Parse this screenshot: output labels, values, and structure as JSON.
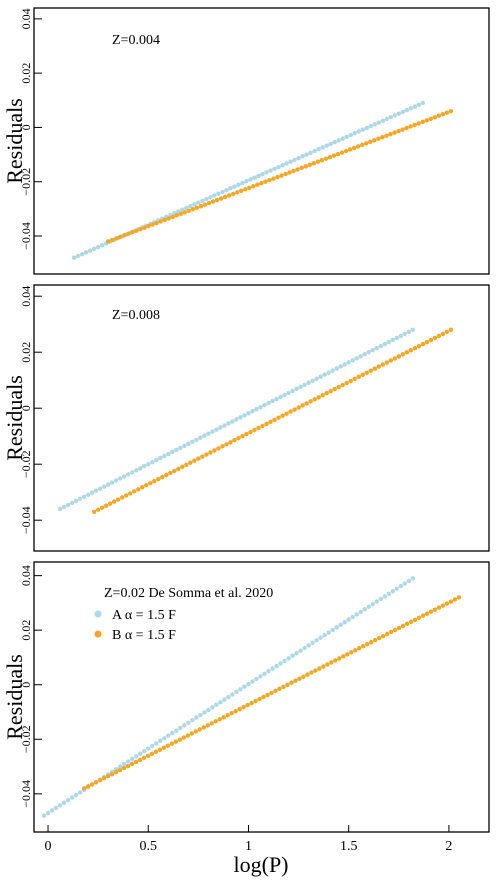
{
  "figure": {
    "xlabel": "log(P)",
    "ylabel": "Residuals"
  },
  "colors": {
    "A": "#add8e6",
    "B": "#f5a623"
  },
  "chart_data": [
    {
      "type": "scatter",
      "annotation": "Z=0.004",
      "xlim": [
        -0.07,
        2.2
      ],
      "ylim": [
        -0.054,
        0.044
      ],
      "yticks": [
        -0.04,
        -0.02,
        0,
        0.02,
        0.04
      ],
      "ytick_labels": [
        "−0.04",
        "−0.02",
        "0",
        "0.02",
        "0.04"
      ],
      "grid": false,
      "legend": [],
      "series": [
        {
          "key": "A",
          "x_range": [
            0.13,
            1.87
          ],
          "y_range": [
            -0.048,
            0.009
          ],
          "n_points": 88
        },
        {
          "key": "B",
          "x_range": [
            0.3,
            2.01
          ],
          "y_range": [
            -0.042,
            0.006
          ],
          "n_points": 86
        }
      ]
    },
    {
      "type": "scatter",
      "annotation": "Z=0.008",
      "xlim": [
        -0.07,
        2.2
      ],
      "ylim": [
        -0.051,
        0.044
      ],
      "yticks": [
        -0.04,
        -0.02,
        0,
        0.02,
        0.04
      ],
      "ytick_labels": [
        "−0.04",
        "−0.02",
        "0",
        "0.02",
        "0.04"
      ],
      "grid": false,
      "legend": [],
      "series": [
        {
          "key": "A",
          "x_range": [
            0.06,
            1.82
          ],
          "y_range": [
            -0.036,
            0.028
          ],
          "n_points": 89
        },
        {
          "key": "B",
          "x_range": [
            0.23,
            2.01
          ],
          "y_range": [
            -0.037,
            0.028
          ],
          "n_points": 90
        }
      ]
    },
    {
      "type": "scatter",
      "annotation": "Z=0.02 De Somma et al. 2020",
      "xlim": [
        -0.07,
        2.2
      ],
      "ylim": [
        -0.054,
        0.045
      ],
      "yticks": [
        -0.04,
        -0.02,
        0,
        0.02,
        0.04
      ],
      "ytick_labels": [
        "−0.04",
        "−0.02",
        "0",
        "0.02",
        "0.04"
      ],
      "xticks": [
        0,
        0.5,
        1,
        1.5,
        2
      ],
      "xtick_labels": [
        "0",
        "0.5",
        "1",
        "1.5",
        "2"
      ],
      "grid": false,
      "legend": [
        {
          "key": "A",
          "label": "A α = 1.5 F"
        },
        {
          "key": "B",
          "label": "B α = 1.5 F"
        }
      ],
      "legend_position": "top-left",
      "series": [
        {
          "key": "A",
          "x_range": [
            -0.02,
            1.82
          ],
          "y_range": [
            -0.048,
            0.039
          ],
          "n_points": 93
        },
        {
          "key": "B",
          "x_range": [
            0.18,
            2.05
          ],
          "y_range": [
            -0.038,
            0.032
          ],
          "n_points": 95
        }
      ]
    }
  ]
}
